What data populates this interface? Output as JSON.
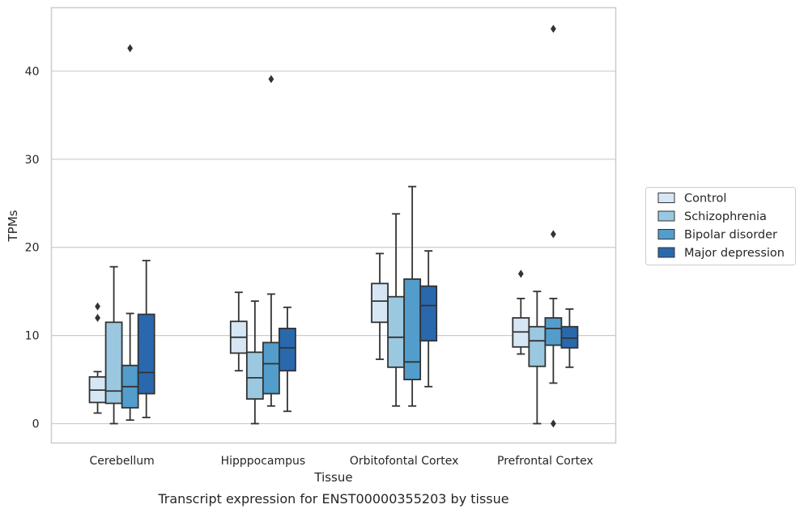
{
  "caption": "Transcript expression for ENST00000355203 by tissue",
  "chart_data": {
    "type": "box",
    "xlabel": "Tissue",
    "ylabel": "TPMs",
    "ylim": [
      -2.2,
      47.2
    ],
    "yticks": [
      0,
      10,
      20,
      30,
      40
    ],
    "grid": "horizontal",
    "legend_position": "right",
    "categories": [
      "Cerebellum",
      "Hipppocampus",
      "Orbitofontal Cortex",
      "Prefrontal Cortex"
    ],
    "series": [
      {
        "name": "Control",
        "color": "#d6e6f4",
        "boxes": [
          {
            "whisker_low": 1.2,
            "q1": 2.4,
            "median": 3.8,
            "q3": 5.3,
            "whisker_high": 5.9,
            "outliers": [
              13.3,
              12.0
            ]
          },
          {
            "whisker_low": 6.0,
            "q1": 8.0,
            "median": 9.8,
            "q3": 11.6,
            "whisker_high": 14.9,
            "outliers": []
          },
          {
            "whisker_low": 7.3,
            "q1": 11.5,
            "median": 13.9,
            "q3": 15.9,
            "whisker_high": 19.3,
            "outliers": []
          },
          {
            "whisker_low": 7.9,
            "q1": 8.7,
            "median": 10.4,
            "q3": 12.0,
            "whisker_high": 14.2,
            "outliers": [
              17.0
            ]
          }
        ]
      },
      {
        "name": "Schizophrenia",
        "color": "#9ac8e0",
        "boxes": [
          {
            "whisker_low": 0.0,
            "q1": 2.3,
            "median": 3.7,
            "q3": 11.5,
            "whisker_high": 17.8,
            "outliers": []
          },
          {
            "whisker_low": 0.0,
            "q1": 2.8,
            "median": 5.2,
            "q3": 8.1,
            "whisker_high": 13.9,
            "outliers": []
          },
          {
            "whisker_low": 2.0,
            "q1": 6.4,
            "median": 9.8,
            "q3": 14.4,
            "whisker_high": 23.8,
            "outliers": []
          },
          {
            "whisker_low": 0.0,
            "q1": 6.5,
            "median": 9.4,
            "q3": 11.0,
            "whisker_high": 15.0,
            "outliers": []
          }
        ]
      },
      {
        "name": "Bipolar disorder",
        "color": "#529dcb",
        "boxes": [
          {
            "whisker_low": 0.4,
            "q1": 1.8,
            "median": 4.2,
            "q3": 6.6,
            "whisker_high": 12.5,
            "outliers": [
              42.6
            ]
          },
          {
            "whisker_low": 2.0,
            "q1": 3.4,
            "median": 6.8,
            "q3": 9.2,
            "whisker_high": 14.7,
            "outliers": [
              39.1
            ]
          },
          {
            "whisker_low": 2.0,
            "q1": 5.0,
            "median": 7.0,
            "q3": 16.4,
            "whisker_high": 26.9,
            "outliers": []
          },
          {
            "whisker_low": 4.6,
            "q1": 8.9,
            "median": 10.8,
            "q3": 12.0,
            "whisker_high": 14.2,
            "outliers": [
              44.8,
              21.5,
              0.0
            ]
          }
        ]
      },
      {
        "name": "Major depression",
        "color": "#2a68ad",
        "boxes": [
          {
            "whisker_low": 0.7,
            "q1": 3.4,
            "median": 5.8,
            "q3": 12.4,
            "whisker_high": 18.5,
            "outliers": []
          },
          {
            "whisker_low": 1.4,
            "q1": 6.0,
            "median": 8.6,
            "q3": 10.8,
            "whisker_high": 13.2,
            "outliers": []
          },
          {
            "whisker_low": 4.2,
            "q1": 9.4,
            "median": 13.4,
            "q3": 15.6,
            "whisker_high": 19.6,
            "outliers": []
          },
          {
            "whisker_low": 6.4,
            "q1": 8.6,
            "median": 9.7,
            "q3": 11.0,
            "whisker_high": 13.0,
            "outliers": []
          }
        ]
      }
    ]
  }
}
